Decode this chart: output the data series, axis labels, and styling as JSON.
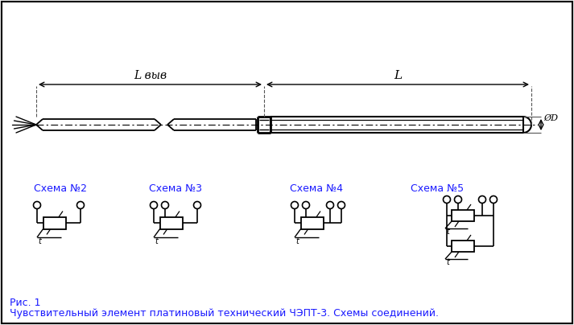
{
  "bg_color": "#f0f0f0",
  "line_color": "#000000",
  "blue_color": "#1a1aff",
  "title_text": "Чувствительный элемент платиновый технический ЧЭПТ-3. Схемы соединений.",
  "fig1_text": "Рис. 1",
  "schema_labels": [
    "Схема №2",
    "Схема №3",
    "Схема №4",
    "Схема №5"
  ],
  "L_vyv_label": "L выв",
  "L_label": "L",
  "D_label": "ØD"
}
